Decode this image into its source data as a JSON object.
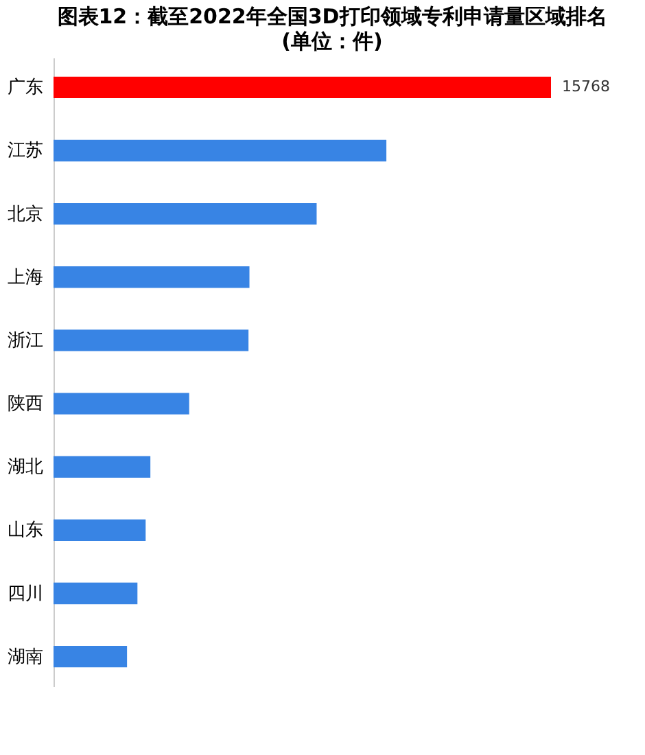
{
  "chart_data": {
    "type": "bar",
    "orientation": "horizontal",
    "title": "图表12：截至2022年全国3D打印领域专利申请量区域排名",
    "subtitle": "(单位：件)",
    "categories": [
      "广东",
      "江苏",
      "北京",
      "上海",
      "浙江",
      "陕西",
      "湖北",
      "山东",
      "四川",
      "湖南"
    ],
    "values": [
      15768,
      10550,
      8340,
      6210,
      6180,
      4300,
      3070,
      2920,
      2660,
      2330
    ],
    "colors": [
      "#ff0000",
      "#3884e4",
      "#3884e4",
      "#3884e4",
      "#3884e4",
      "#3884e4",
      "#3884e4",
      "#3884e4",
      "#3884e4",
      "#3884e4"
    ],
    "value_labels": [
      "15768",
      null,
      null,
      null,
      null,
      null,
      null,
      null,
      null,
      null
    ],
    "tick_labels": "y",
    "grid": false
  }
}
